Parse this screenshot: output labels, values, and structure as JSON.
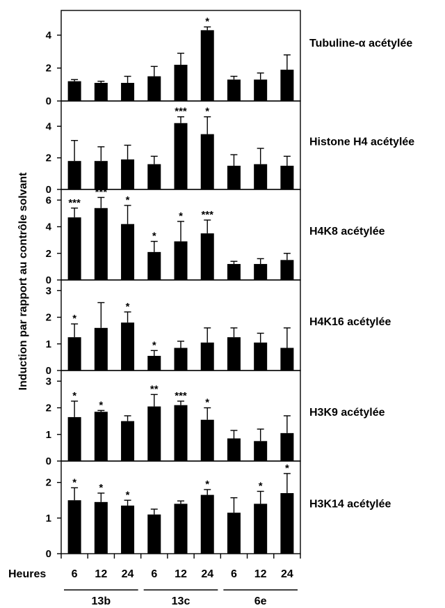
{
  "chart_data": {
    "type": "bar",
    "ylabel": "Induction par rapport au contrôle solvant",
    "xlabel": "Heures",
    "categories": [
      "6",
      "12",
      "24",
      "6",
      "12",
      "24",
      "6",
      "12",
      "24"
    ],
    "groups": [
      {
        "label": "13b",
        "span": [
          0,
          2
        ]
      },
      {
        "label": "13c",
        "span": [
          3,
          5
        ]
      },
      {
        "label": "6e",
        "span": [
          6,
          8
        ]
      }
    ],
    "panels": [
      {
        "title": "Tubuline-α acétylée",
        "ylim": [
          0,
          5.5
        ],
        "yticks": [
          0,
          2,
          4
        ],
        "values": [
          1.2,
          1.1,
          1.1,
          1.5,
          2.2,
          4.3,
          1.3,
          1.3,
          1.9
        ],
        "errors": [
          0.1,
          0.1,
          0.4,
          0.6,
          0.7,
          0.2,
          0.2,
          0.4,
          0.9
        ],
        "stars": [
          "",
          "",
          "",
          "",
          "",
          "*",
          "",
          "",
          ""
        ]
      },
      {
        "title": "Histone H4 acétylée",
        "ylim": [
          0,
          5.6
        ],
        "yticks": [
          0,
          2,
          4
        ],
        "values": [
          1.8,
          1.8,
          1.9,
          1.6,
          4.2,
          3.5,
          1.5,
          1.6,
          1.5
        ],
        "errors": [
          1.3,
          0.9,
          0.9,
          0.5,
          0.4,
          1.1,
          0.7,
          1.0,
          0.6
        ],
        "stars": [
          "",
          "",
          "",
          "",
          "***",
          "*",
          "",
          "",
          ""
        ]
      },
      {
        "title": "H4K8 acétylée",
        "ylim": [
          0,
          6.8
        ],
        "yticks": [
          0,
          2,
          4,
          6
        ],
        "values": [
          4.7,
          5.4,
          4.2,
          2.1,
          2.9,
          3.5,
          1.2,
          1.2,
          1.5
        ],
        "errors": [
          0.7,
          0.8,
          1.4,
          0.8,
          1.5,
          1.0,
          0.2,
          0.4,
          0.5
        ],
        "stars": [
          "***",
          "***",
          "*",
          "*",
          "*",
          "***",
          "",
          "",
          ""
        ]
      },
      {
        "title": "H4K16 acétylée",
        "ylim": [
          0,
          3.4
        ],
        "yticks": [
          0,
          1,
          2,
          3
        ],
        "values": [
          1.25,
          1.6,
          1.8,
          0.55,
          0.85,
          1.05,
          1.25,
          1.05,
          0.85
        ],
        "errors": [
          0.5,
          0.95,
          0.4,
          0.2,
          0.25,
          0.55,
          0.35,
          0.35,
          0.75
        ],
        "stars": [
          "*",
          "",
          "*",
          "*",
          "",
          "",
          "",
          "",
          ""
        ]
      },
      {
        "title": "H3K9 acétylée",
        "ylim": [
          0,
          3.4
        ],
        "yticks": [
          0,
          1,
          2,
          3
        ],
        "values": [
          1.65,
          1.85,
          1.5,
          2.05,
          2.1,
          1.55,
          0.85,
          0.75,
          1.05
        ],
        "errors": [
          0.6,
          0.05,
          0.2,
          0.45,
          0.15,
          0.45,
          0.3,
          0.45,
          0.65
        ],
        "stars": [
          "*",
          "*",
          "",
          "**",
          "***",
          "*",
          "",
          "",
          ""
        ]
      },
      {
        "title": "H3K14 acétylée",
        "ylim": [
          0,
          2.6
        ],
        "yticks": [
          0,
          1,
          2
        ],
        "values": [
          1.5,
          1.45,
          1.35,
          1.1,
          1.4,
          1.65,
          1.15,
          1.4,
          1.7
        ],
        "errors": [
          0.35,
          0.25,
          0.15,
          0.15,
          0.08,
          0.15,
          0.42,
          0.35,
          0.55
        ],
        "stars": [
          "*",
          "*",
          "*",
          "",
          "",
          "*",
          "",
          "*",
          "*"
        ]
      }
    ]
  }
}
